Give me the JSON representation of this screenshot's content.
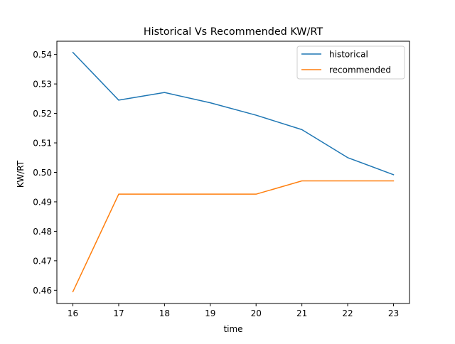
{
  "chart_data": {
    "type": "line",
    "title": "Historical Vs Recommended KW/RT",
    "xlabel": "time",
    "ylabel": "KW/RT",
    "x": [
      16,
      17,
      18,
      19,
      20,
      21,
      22,
      23
    ],
    "xlim": [
      15.65,
      23.35
    ],
    "ylim": [
      0.4555,
      0.5445
    ],
    "xticks": [
      16,
      17,
      18,
      19,
      20,
      21,
      22,
      23
    ],
    "yticks": [
      0.46,
      0.47,
      0.48,
      0.49,
      0.5,
      0.51,
      0.52,
      0.53,
      0.54
    ],
    "ytick_labels": [
      "0.46",
      "0.47",
      "0.48",
      "0.49",
      "0.50",
      "0.51",
      "0.52",
      "0.53",
      "0.54"
    ],
    "grid": false,
    "legend_position": "top-right",
    "series": [
      {
        "name": "historical",
        "color": "#1f77b4",
        "values": [
          0.5407,
          0.5245,
          0.5271,
          0.5236,
          0.5194,
          0.5145,
          0.505,
          0.4992
        ]
      },
      {
        "name": "recommended",
        "color": "#ff7f0e",
        "values": [
          0.4595,
          0.4926,
          0.4926,
          0.4926,
          0.4926,
          0.4971,
          0.4971,
          0.4971
        ]
      }
    ]
  }
}
